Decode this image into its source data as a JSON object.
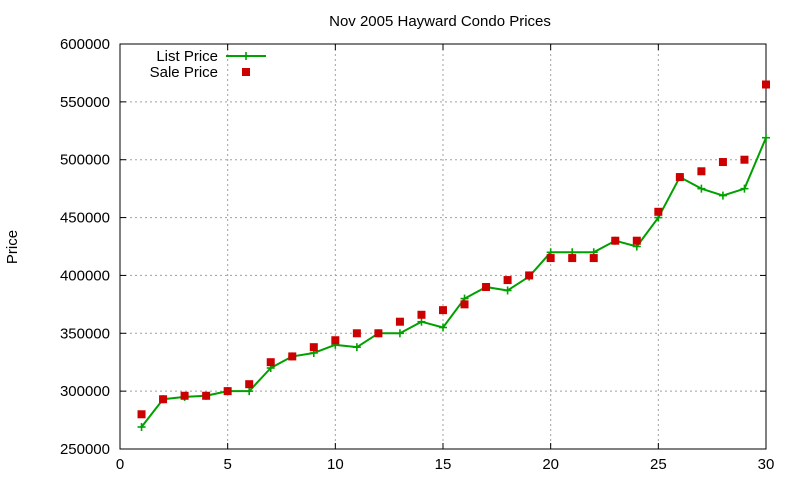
{
  "chart_data": {
    "type": "line",
    "title": "Nov 2005 Hayward Condo Prices",
    "xlabel": "",
    "ylabel": "Price",
    "xlim": [
      0,
      30
    ],
    "ylim": [
      250000,
      600000
    ],
    "x_ticks": [
      0,
      5,
      10,
      15,
      20,
      25,
      30
    ],
    "y_ticks": [
      250000,
      300000,
      350000,
      400000,
      450000,
      500000,
      550000,
      600000
    ],
    "grid": true,
    "legend_position": "top-left",
    "colors": {
      "list": "#00a000",
      "sale": "#cc0000",
      "grid": "#a0a0a0"
    },
    "series": [
      {
        "name": "List Price",
        "style": "linespoints",
        "x": [
          1,
          2,
          3,
          4,
          5,
          6,
          7,
          8,
          9,
          10,
          11,
          12,
          13,
          14,
          15,
          16,
          17,
          18,
          19,
          20,
          21,
          22,
          23,
          24,
          25,
          26,
          27,
          28,
          29,
          30
        ],
        "values": [
          269000,
          293000,
          295000,
          296000,
          300000,
          300000,
          320000,
          330000,
          333000,
          340000,
          338000,
          350000,
          350000,
          360000,
          355000,
          380000,
          390000,
          387000,
          399000,
          420000,
          420000,
          420000,
          430000,
          425000,
          450000,
          485000,
          475000,
          469000,
          475000,
          519000
        ]
      },
      {
        "name": "Sale Price",
        "style": "points",
        "x": [
          1,
          2,
          3,
          4,
          5,
          6,
          7,
          8,
          9,
          10,
          11,
          12,
          13,
          14,
          15,
          16,
          17,
          18,
          19,
          20,
          21,
          22,
          23,
          24,
          25,
          26,
          27,
          28,
          29,
          30
        ],
        "values": [
          280000,
          293000,
          296000,
          296000,
          300000,
          306000,
          325000,
          330000,
          338000,
          344000,
          350000,
          350000,
          360000,
          366000,
          370000,
          375000,
          390000,
          396000,
          400000,
          415000,
          415000,
          415000,
          430000,
          430000,
          455000,
          485000,
          490000,
          498000,
          500000,
          565000
        ]
      }
    ]
  }
}
